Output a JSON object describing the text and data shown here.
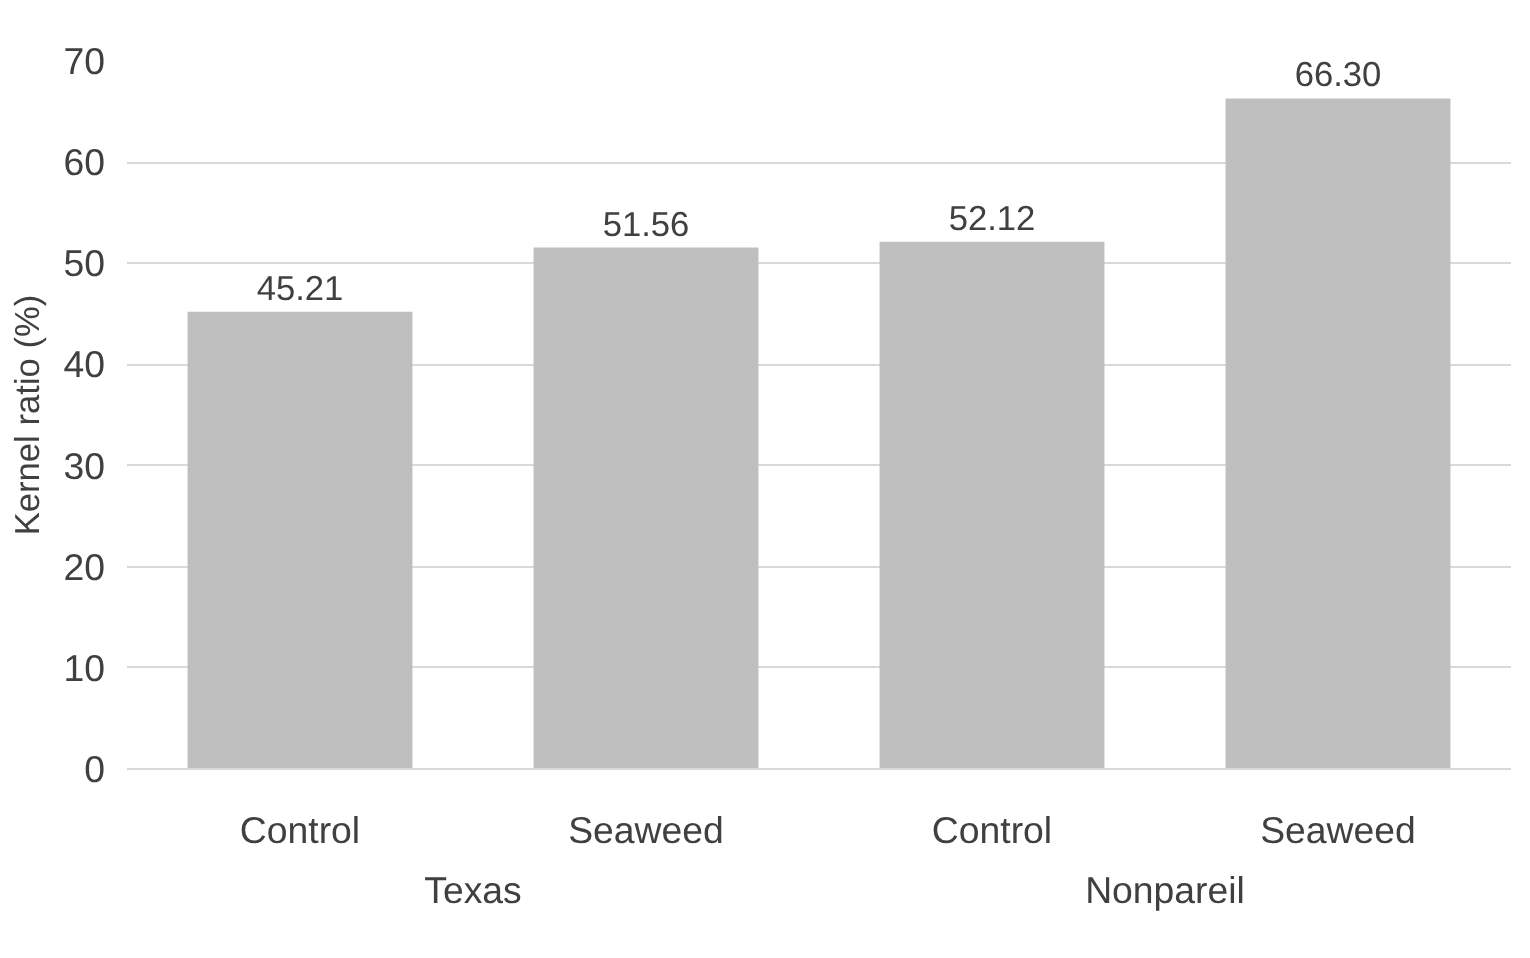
{
  "chart_data": {
    "type": "bar",
    "ylabel": "Kernel ratio (%)",
    "categories": [
      "Control",
      "Seaweed",
      "Control",
      "Seaweed"
    ],
    "values": [
      45.21,
      51.56,
      52.12,
      66.3
    ],
    "value_labels": [
      "45.21",
      "51.56",
      "52.12",
      "66.30"
    ],
    "color": "#bfbfbf",
    "ylim": [
      0,
      70
    ],
    "yticks": [
      0,
      10,
      20,
      30,
      40,
      50,
      60,
      70
    ],
    "grid": "y",
    "annotations": [
      "Texas",
      "Nonpareil"
    ]
  }
}
